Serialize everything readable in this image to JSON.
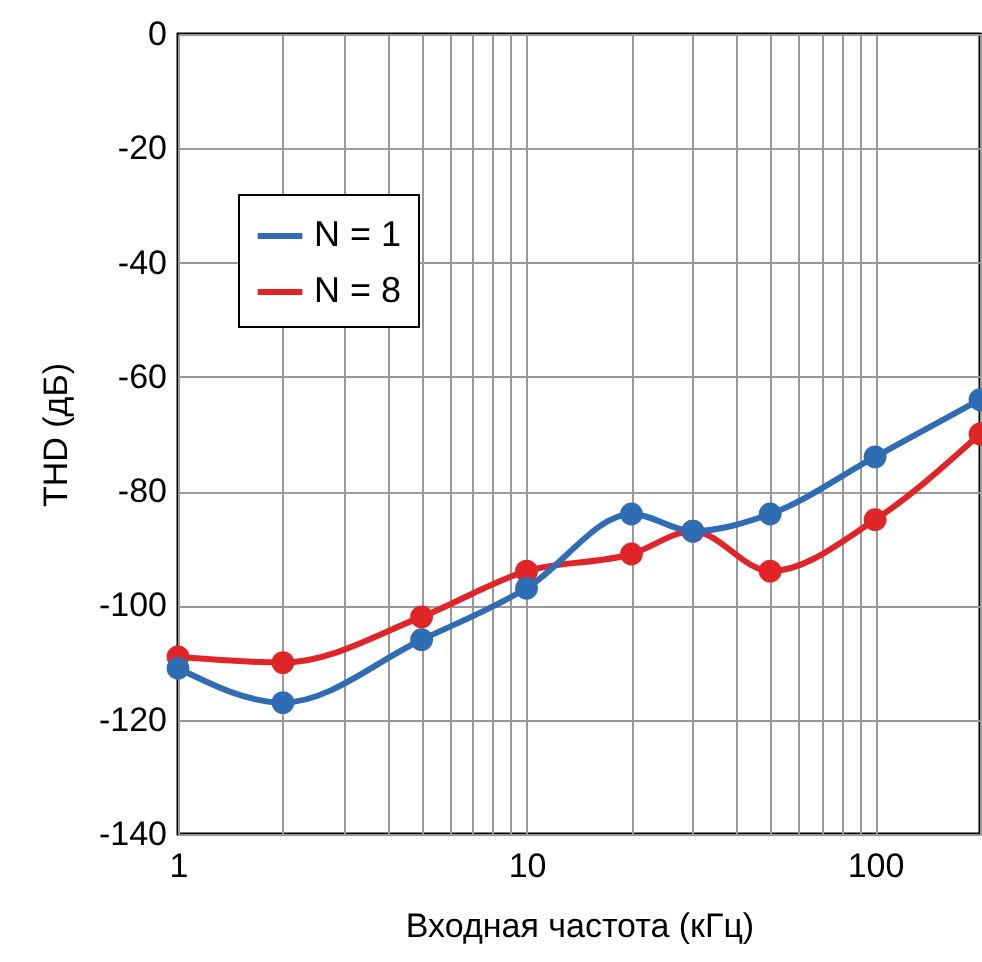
{
  "chart_data": {
    "type": "line",
    "xlabel": "Входная частота (кГц)",
    "ylabel": "THD (дБ)",
    "x": [
      1,
      2,
      5,
      10,
      20,
      30,
      50,
      100,
      200
    ],
    "series": [
      {
        "name": "N = 1",
        "color": "#2e6db4",
        "values": [
          -111,
          -117,
          -106,
          -97,
          -84,
          -87,
          -84,
          -74,
          -64
        ]
      },
      {
        "name": "N = 8",
        "color": "#e02529",
        "values": [
          -109,
          -110,
          -102,
          -94,
          -91,
          -87,
          -94,
          -85,
          -70
        ]
      }
    ],
    "log": "x",
    "xlim": [
      1,
      200
    ],
    "ylim": [
      -140,
      0
    ],
    "xticks": [
      1,
      {
        "value": 2,
        "label": null
      },
      {
        "value": 3,
        "label": null
      },
      {
        "value": 4,
        "label": null
      },
      {
        "value": 5,
        "label": null
      },
      {
        "value": 6,
        "label": null
      },
      {
        "value": 7,
        "label": null
      },
      {
        "value": 8,
        "label": null
      },
      {
        "value": 9,
        "label": null
      },
      10,
      {
        "value": 20,
        "label": null
      },
      {
        "value": 30,
        "label": null
      },
      {
        "value": 40,
        "label": null
      },
      {
        "value": 50,
        "label": null
      },
      {
        "value": 60,
        "label": null
      },
      {
        "value": 70,
        "label": null
      },
      {
        "value": 80,
        "label": null
      },
      {
        "value": 90,
        "label": null
      },
      100,
      {
        "value": 200,
        "label": null
      }
    ],
    "yticks": [
      -140,
      -120,
      -100,
      -80,
      -60,
      -40,
      -20,
      0
    ],
    "grid": true,
    "legend": "top left",
    "marker": "circle",
    "line_style": "solid"
  }
}
